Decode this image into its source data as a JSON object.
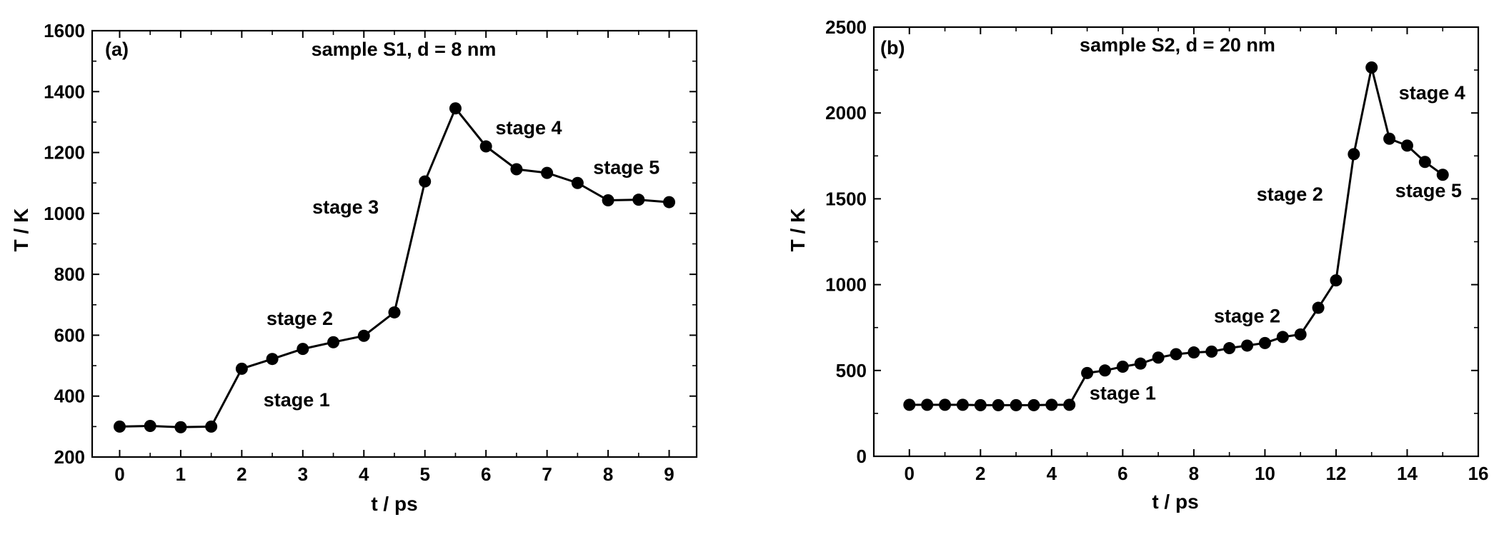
{
  "chart_data": [
    {
      "type": "line",
      "panel_label": "(a)",
      "title": "sample S1, d = 8 nm",
      "xlabel": "t / ps",
      "ylabel": "T / K",
      "xlim": [
        -0.45,
        9.45
      ],
      "ylim": [
        200,
        1600
      ],
      "xticks": [
        0,
        1,
        2,
        3,
        4,
        5,
        6,
        7,
        8,
        9
      ],
      "yticks": [
        200,
        400,
        600,
        800,
        1000,
        1200,
        1400,
        1600
      ],
      "grid": false,
      "series": [
        {
          "x": [
            0,
            0.5,
            1,
            1.5,
            2,
            2.5,
            3,
            3.5,
            4,
            4.5,
            5,
            5.5,
            6,
            6.5,
            7,
            7.5,
            8,
            8.5,
            9
          ],
          "y": [
            300,
            302,
            298,
            300,
            490,
            522,
            555,
            577,
            598,
            675,
            1105,
            1345,
            1220,
            1145,
            1133,
            1100,
            1043,
            1045,
            1037
          ]
        }
      ],
      "annotations": [
        {
          "text": "stage 1",
          "x": 2.9,
          "y": 366
        },
        {
          "text": "stage 2",
          "x": 2.95,
          "y": 634
        },
        {
          "text": "stage 3",
          "x": 3.7,
          "y": 1000
        },
        {
          "text": "stage 4",
          "x": 6.7,
          "y": 1260
        },
        {
          "text": "stage 5",
          "x": 8.3,
          "y": 1130
        }
      ]
    },
    {
      "type": "line",
      "panel_label": "(b)",
      "title": "sample S2, d = 20 nm",
      "xlabel": "t / ps",
      "ylabel": "T / K",
      "xlim": [
        -1,
        16
      ],
      "ylim": [
        0,
        2500
      ],
      "xticks": [
        0,
        2,
        4,
        6,
        8,
        10,
        12,
        14,
        16
      ],
      "yticks": [
        0,
        500,
        1000,
        1500,
        2000,
        2500
      ],
      "grid": false,
      "series": [
        {
          "x": [
            0,
            0.5,
            1,
            1.5,
            2,
            2.5,
            3,
            3.5,
            4,
            4.5,
            5,
            5.5,
            6,
            6.5,
            7,
            7.5,
            8,
            8.5,
            9,
            9.5,
            10,
            10.5,
            11,
            11.5,
            12,
            12.5,
            13,
            13.5,
            14,
            14.5,
            15
          ],
          "y": [
            300,
            300,
            300,
            300,
            298,
            298,
            298,
            298,
            300,
            300,
            485,
            500,
            522,
            540,
            575,
            595,
            605,
            610,
            630,
            645,
            660,
            695,
            710,
            865,
            1025,
            1760,
            2265,
            1850,
            1810,
            1715,
            1640
          ]
        }
      ],
      "annotations": [
        {
          "text": "stage 1",
          "x": 6.0,
          "y": 330
        },
        {
          "text": "stage 2",
          "x": 9.5,
          "y": 780
        },
        {
          "text": "stage 2",
          "x": 10.7,
          "y": 1490
        },
        {
          "text": "stage 4",
          "x": 14.7,
          "y": 2080
        },
        {
          "text": "stage 5",
          "x": 14.6,
          "y": 1510
        }
      ]
    }
  ]
}
